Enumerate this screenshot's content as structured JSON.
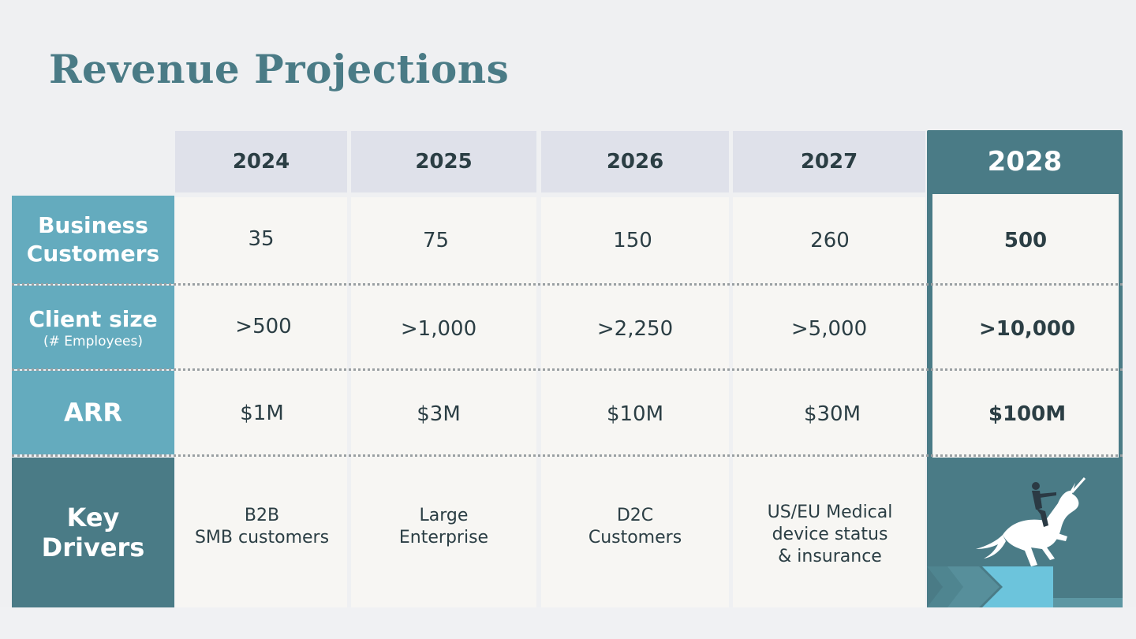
{
  "title": "Revenue Projections",
  "years": [
    "2024",
    "2025",
    "2026",
    "2027",
    "2028"
  ],
  "rows": {
    "customers": {
      "label_line1": "Business",
      "label_line2": "Customers",
      "values": [
        "35",
        "75",
        "150",
        "260",
        "500"
      ]
    },
    "client_size": {
      "label": "Client size",
      "sublabel": "(# Employees)",
      "values": [
        ">500",
        ">1,000",
        ">2,250",
        ">5,000",
        ">10,000"
      ]
    },
    "arr": {
      "label": "ARR",
      "values": [
        "$1M",
        "$3M",
        "$10M",
        "$30M",
        "$100M"
      ]
    },
    "drivers": {
      "label_line1": "Key",
      "label_line2": "Drivers",
      "values": [
        "B2B\nSMB customers",
        "Large\nEnterprise",
        "D2C\nCustomers",
        "US/EU Medical\ndevice status\n& insurance"
      ]
    }
  },
  "colors": {
    "title": "#4a7b86",
    "header_bg": "#dfe1ea",
    "highlight": "#4a7b86",
    "label_bg": "#64abbe",
    "cell_bg": "#f7f6f3"
  }
}
